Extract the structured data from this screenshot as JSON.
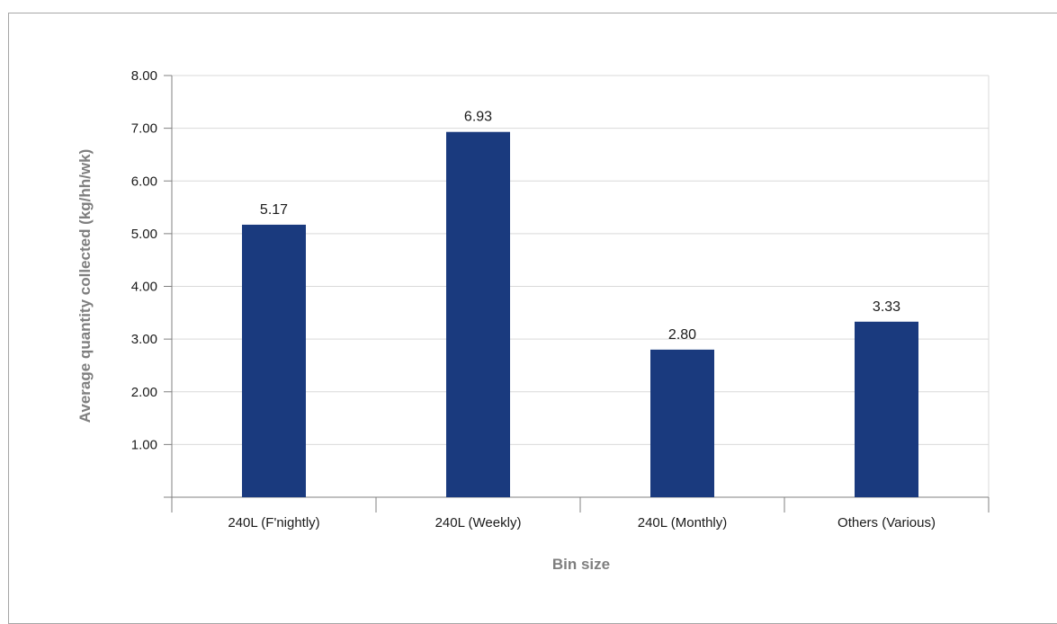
{
  "chart_data": {
    "type": "bar",
    "categories": [
      "240L (F'nightly)",
      "240L  (Weekly)",
      "240L  (Monthly)",
      "Others (Various)"
    ],
    "values": [
      5.17,
      6.93,
      2.8,
      3.33
    ],
    "value_labels": [
      "5.17",
      "6.93",
      "2.80",
      "3.33"
    ],
    "title": "",
    "xlabel": "Bin size",
    "ylabel": "Average quantity collected (kg/hh/wk)",
    "ylim": [
      0,
      8
    ],
    "yticks": [
      1,
      2,
      3,
      4,
      5,
      6,
      7,
      8
    ],
    "ytick_labels": [
      "1.00",
      "2.00",
      "3.00",
      "4.00",
      "5.00",
      "6.00",
      "7.00",
      "8.00"
    ],
    "grid": true,
    "legend": "none",
    "colors": {
      "bar": "#1a3a7e",
      "grid": "#d9d9d9",
      "axis": "#808080",
      "axis_title": "#7f7f7f"
    }
  }
}
